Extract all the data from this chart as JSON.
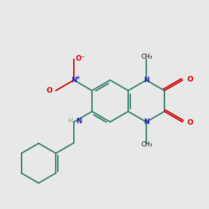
{
  "bg_color": "#e8e8e8",
  "bond_color": "#2d7d6b",
  "N_color": "#2020bb",
  "O_color": "#cc0000",
  "H_color": "#5f9ea0",
  "figsize": [
    3.0,
    3.0
  ],
  "dpi": 100,
  "bond_lw": 1.4,
  "font_size": 7.0,
  "bl": 30
}
